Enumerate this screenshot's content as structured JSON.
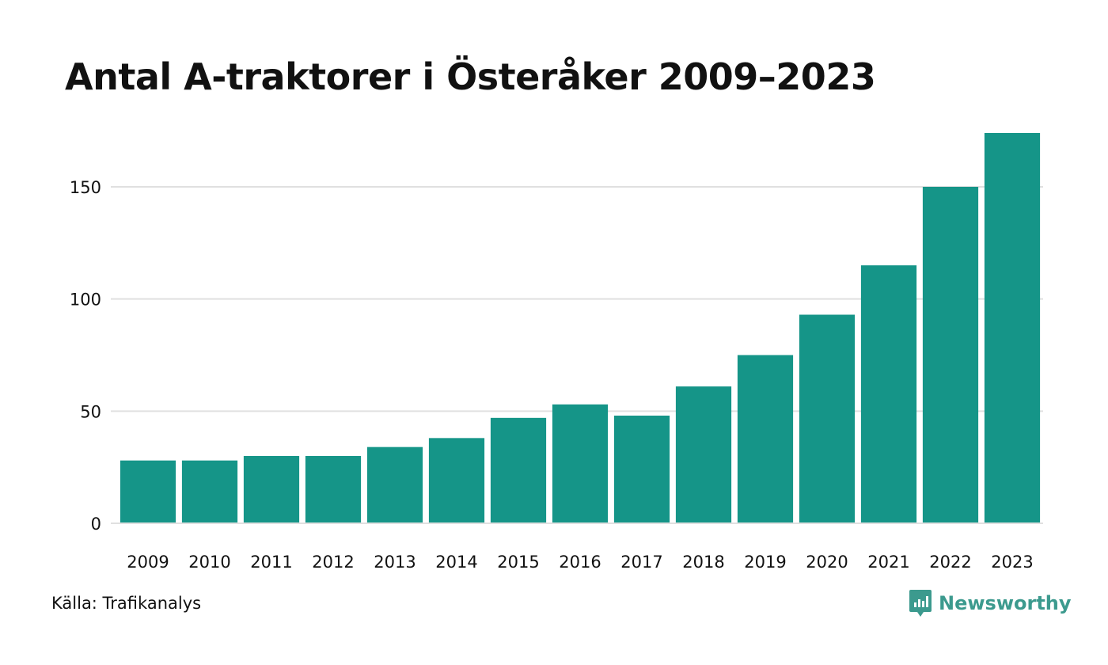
{
  "title": "Antal A-traktorer i Österåker 2009–2023",
  "source": "Källa: Trafikanalys",
  "brand": {
    "name": "Newsworthy",
    "icon": "newsworthy-logo-icon",
    "color": "#3c9a8e"
  },
  "colors": {
    "bar": "#159588",
    "grid": "#e0e0e0",
    "text": "#111111"
  },
  "chart_data": {
    "type": "bar",
    "title": "Antal A-traktorer i Österåker 2009–2023",
    "xlabel": "",
    "ylabel": "",
    "categories": [
      "2009",
      "2010",
      "2011",
      "2012",
      "2013",
      "2014",
      "2015",
      "2016",
      "2017",
      "2018",
      "2019",
      "2020",
      "2021",
      "2022",
      "2023"
    ],
    "values": [
      28,
      28,
      30,
      30,
      34,
      38,
      47,
      53,
      48,
      61,
      75,
      93,
      115,
      150,
      174
    ],
    "ylim": [
      0,
      174
    ],
    "yticks": [
      0,
      50,
      100,
      150
    ],
    "grid": true,
    "legend": "none"
  }
}
